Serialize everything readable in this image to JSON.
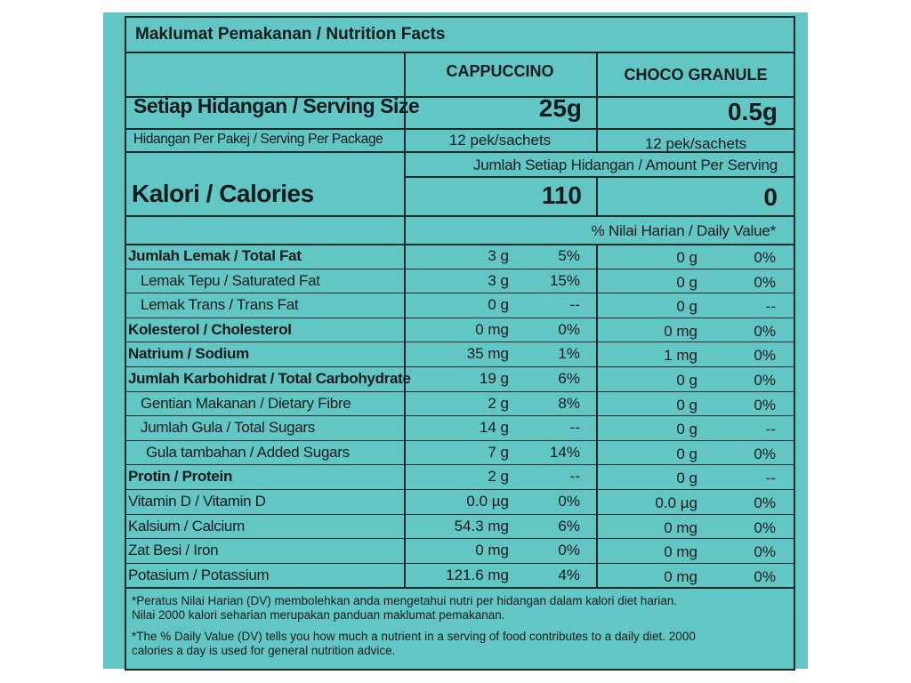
{
  "header": {
    "title": "Maklumat Pemakanan / Nutrition Facts"
  },
  "columns": {
    "col1": "CAPPUCCINO",
    "col2": "CHOCO GRANULE"
  },
  "serving_size": {
    "label": "Setiap Hidangan / Serving Size",
    "col1": "25g",
    "col2": "0.5g"
  },
  "servings_per_package": {
    "label": "Hidangan Per Pakej / Serving Per Package",
    "col1": "12 pek/sachets",
    "col2": "12 pek/sachets"
  },
  "amount_per_serving": "Jumlah Setiap Hidangan / Amount Per Serving",
  "calories": {
    "label": "Kalori / Calories",
    "col1": "110",
    "col2": "0"
  },
  "daily_value_header": "% Nilai Harian / Daily Value*",
  "nutrients": [
    {
      "label": "Jumlah Lemak / Total Fat",
      "bold": true,
      "indent": 0,
      "v1": "3 g",
      "p1": "5%",
      "v2": "0 g",
      "p2": "0%"
    },
    {
      "label": "Lemak Tepu / Saturated Fat",
      "bold": false,
      "indent": 1,
      "v1": "3 g",
      "p1": "15%",
      "v2": "0 g",
      "p2": "0%"
    },
    {
      "label": "Lemak Trans / Trans Fat",
      "bold": false,
      "indent": 1,
      "v1": "0 g",
      "p1": "--",
      "v2": "0 g",
      "p2": "--"
    },
    {
      "label": "Kolesterol / Cholesterol",
      "bold": true,
      "indent": 0,
      "v1": "0 mg",
      "p1": "0%",
      "v2": "0 mg",
      "p2": "0%"
    },
    {
      "label": "Natrium / Sodium",
      "bold": true,
      "indent": 0,
      "v1": "35 mg",
      "p1": "1%",
      "v2": "1 mg",
      "p2": "0%"
    },
    {
      "label": "Jumlah Karbohidrat / Total Carbohydrate",
      "bold": true,
      "indent": 0,
      "v1": "19 g",
      "p1": "6%",
      "v2": "0 g",
      "p2": "0%"
    },
    {
      "label": "Gentian Makanan / Dietary Fibre",
      "bold": false,
      "indent": 1,
      "v1": "2 g",
      "p1": "8%",
      "v2": "0 g",
      "p2": "0%"
    },
    {
      "label": "Jumlah Gula / Total Sugars",
      "bold": false,
      "indent": 1,
      "v1": "14 g",
      "p1": "--",
      "v2": "0 g",
      "p2": "--"
    },
    {
      "label": "Gula tambahan / Added Sugars",
      "bold": false,
      "indent": 2,
      "v1": "7 g",
      "p1": "14%",
      "v2": "0 g",
      "p2": "0%"
    },
    {
      "label": "Protin / Protein",
      "bold": true,
      "indent": 0,
      "v1": "2 g",
      "p1": "--",
      "v2": "0 g",
      "p2": "--"
    },
    {
      "label": "Vitamin D / Vitamin D",
      "bold": false,
      "indent": 0,
      "v1": "0.0 µg",
      "p1": "0%",
      "v2": "0.0 µg",
      "p2": "0%"
    },
    {
      "label": "Kalsium / Calcium",
      "bold": false,
      "indent": 0,
      "v1": "54.3 mg",
      "p1": "6%",
      "v2": "0 mg",
      "p2": "0%"
    },
    {
      "label": "Zat Besi / Iron",
      "bold": false,
      "indent": 0,
      "v1": "0 mg",
      "p1": "0%",
      "v2": "0 mg",
      "p2": "0%"
    },
    {
      "label": "Potasium / Potassium",
      "bold": false,
      "indent": 0,
      "v1": "121.6 mg",
      "p1": "4%",
      "v2": "0 mg",
      "p2": "0%"
    }
  ],
  "footnote": {
    "malay_line1": "*Peratus Nilai Harian (DV) membolehkan anda mengetahui nutri per hidangan dalam kalori diet harian.",
    "malay_line2": "Nilai 2000 kalori seharian merupakan panduan maklumat pemakanan.",
    "english_line1": "*The % Daily Value (DV) tells you how much a nutrient in a serving of food contributes to a daily diet. 2000",
    "english_line2": "calories a day is used for general nutrition advice."
  },
  "colors": {
    "background": "#62c6c4",
    "ink": "#141c1d",
    "border": "#1c2a2b"
  }
}
